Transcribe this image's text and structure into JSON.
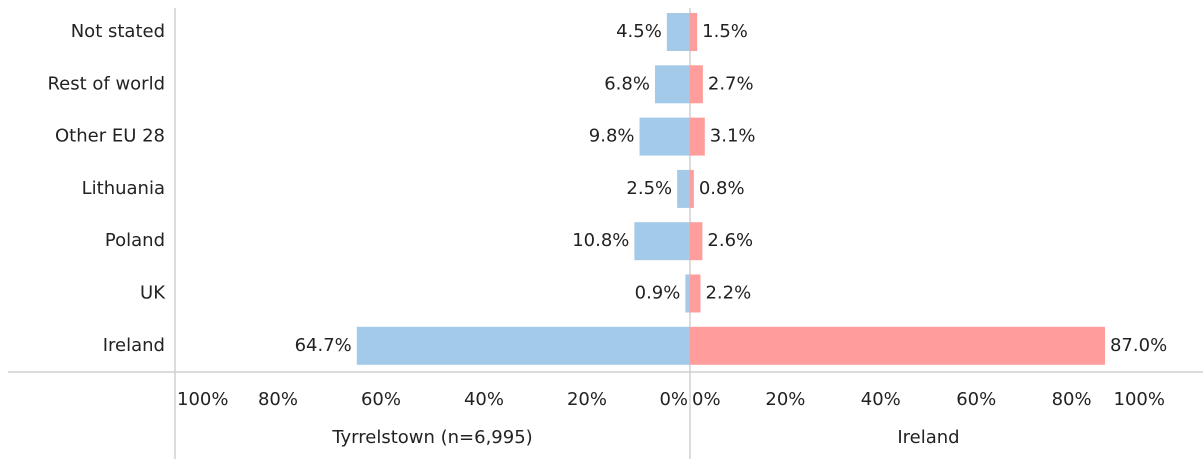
{
  "chart_data": [
    {
      "type": "bar",
      "orientation": "horizontal",
      "xreversed": true,
      "categories": [
        "Not stated",
        "Rest of world",
        "Other EU 28",
        "Lithuania",
        "Poland",
        "UK",
        "Ireland"
      ],
      "series": [
        {
          "name": "Tyrrelstown (n=6,995)",
          "color": "#a3cbe9",
          "values": [
            4.5,
            6.8,
            9.8,
            2.5,
            10.8,
            0.9,
            64.7
          ],
          "value_labels": [
            "4.5%",
            "6.8%",
            "9.8%",
            "2.5%",
            "10.8%",
            "0.9%",
            "64.7%"
          ]
        }
      ],
      "xlim": [
        0,
        100
      ],
      "xticks": [
        {
          "value": 100,
          "label": "100%"
        },
        {
          "value": 80,
          "label": "80%"
        },
        {
          "value": 60,
          "label": "60%"
        },
        {
          "value": 40,
          "label": "40%"
        },
        {
          "value": 20,
          "label": "20%"
        },
        {
          "value": 0,
          "label": "0%"
        }
      ]
    },
    {
      "type": "bar",
      "orientation": "horizontal",
      "xreversed": false,
      "series": [
        {
          "name": "Ireland",
          "color": "#ff9d9c",
          "values": [
            1.5,
            2.7,
            3.1,
            0.8,
            2.6,
            2.2,
            87.0
          ],
          "value_labels": [
            "1.5%",
            "2.7%",
            "3.1%",
            "0.8%",
            "2.6%",
            "2.2%",
            "87.0%"
          ]
        }
      ],
      "xlim": [
        0,
        100
      ],
      "xticks": [
        {
          "value": 0,
          "label": "0%"
        },
        {
          "value": 20,
          "label": "20%"
        },
        {
          "value": 40,
          "label": "40%"
        },
        {
          "value": 60,
          "label": "60%"
        },
        {
          "value": 80,
          "label": "80%"
        },
        {
          "value": 100,
          "label": "100%"
        }
      ]
    }
  ]
}
